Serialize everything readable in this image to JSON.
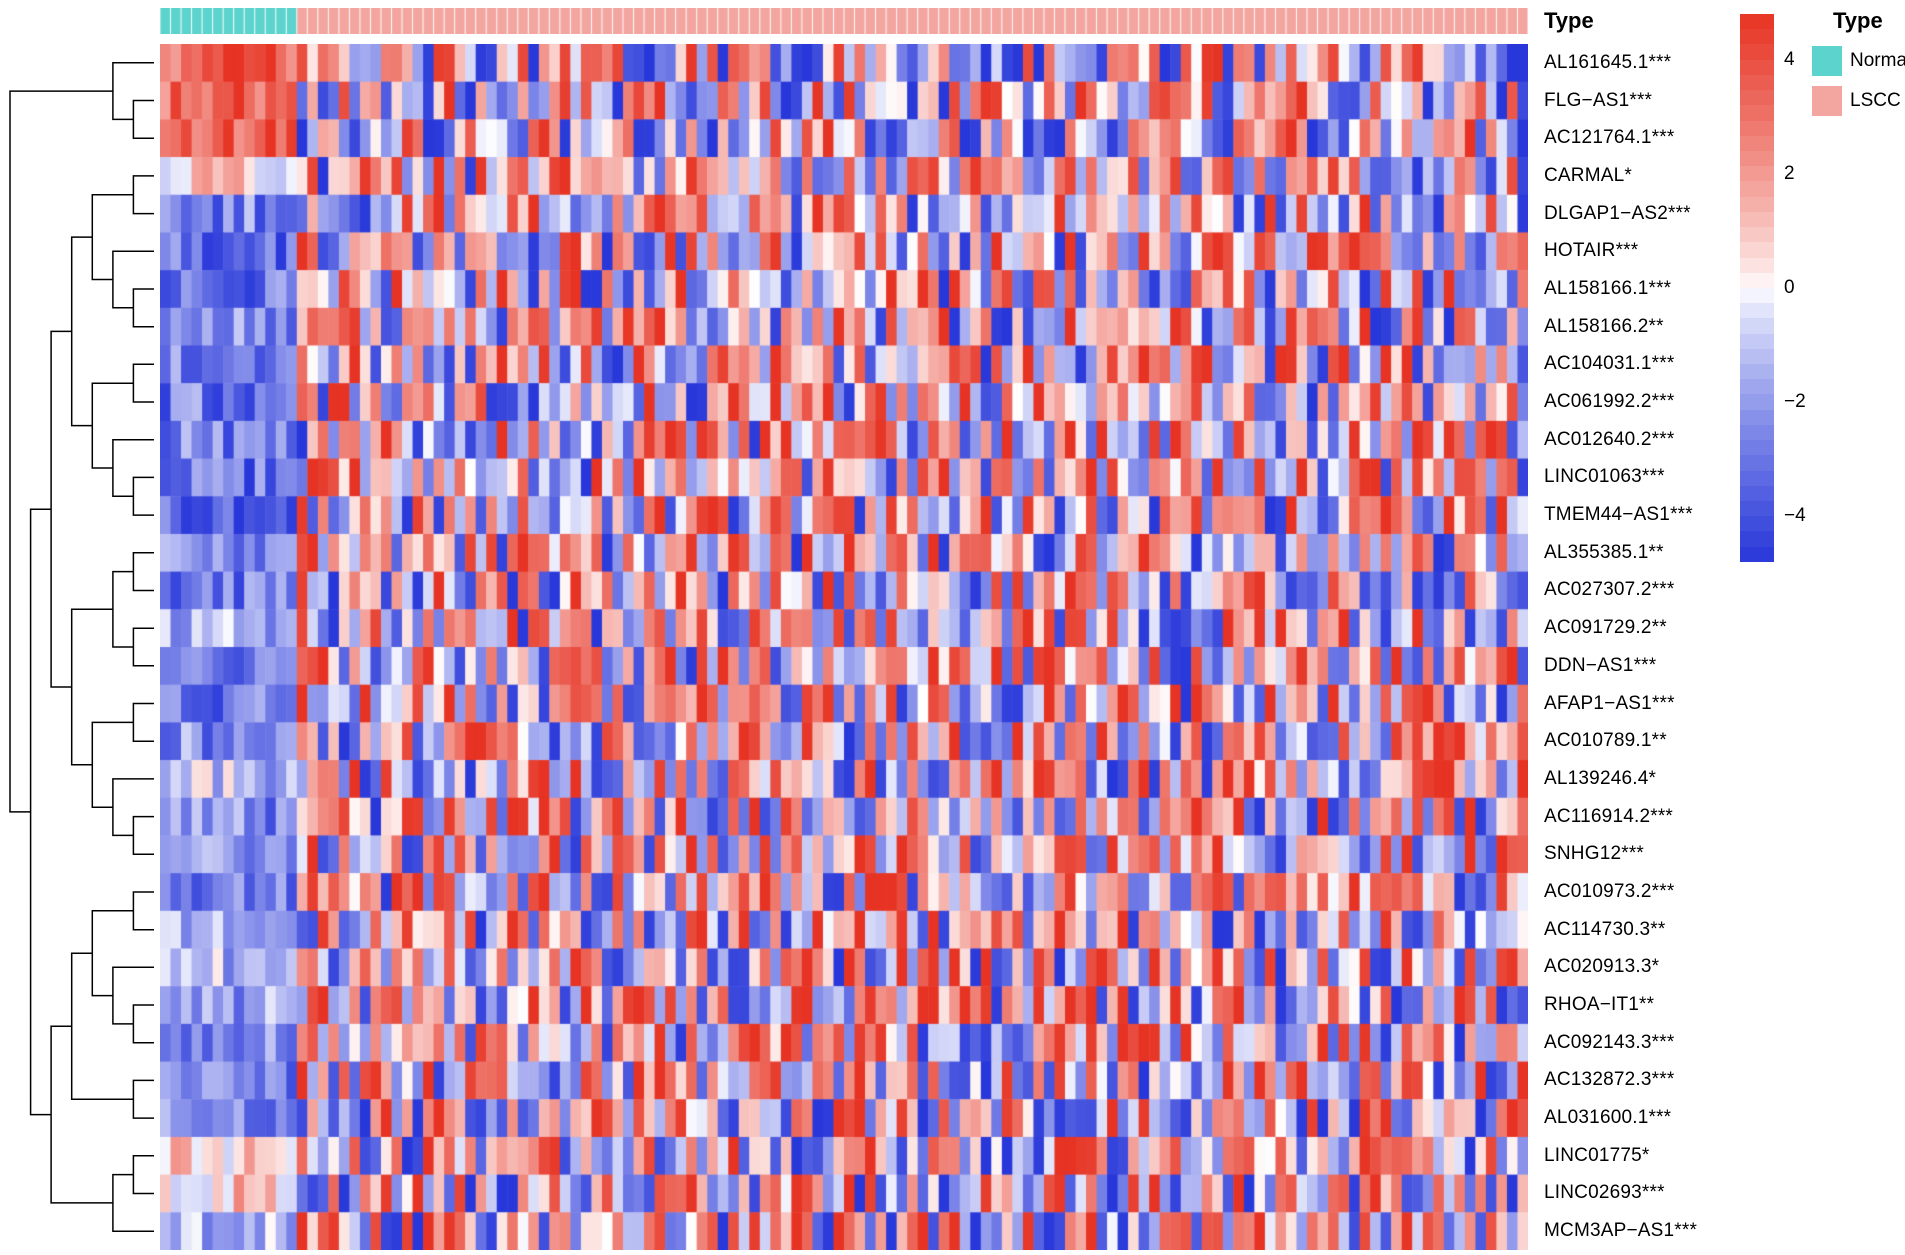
{
  "figure": {
    "background": "#FFFFFF"
  },
  "annotation": {
    "label": "Type",
    "groups": [
      {
        "name": "Normal",
        "color": "#5CD3CC",
        "n_cols": 13
      },
      {
        "name": "LSCC",
        "color": "#F3A5A0",
        "n_cols": 117
      }
    ]
  },
  "legend": {
    "colorbar": {
      "ticks": [
        {
          "v": 4,
          "label": "4"
        },
        {
          "v": 2,
          "label": "2"
        },
        {
          "v": 0,
          "label": "0"
        },
        {
          "v": -2,
          "label": "−2"
        },
        {
          "v": -4,
          "label": "−4"
        }
      ],
      "max": 4.8,
      "min": -4.8
    },
    "type_legend": {
      "title": "Type",
      "items": [
        {
          "label": "Normal",
          "color": "#5CD3CC"
        },
        {
          "label": "LSCC",
          "color": "#F3A5A0"
        }
      ]
    }
  },
  "chart_data": {
    "type": "heatmap",
    "title": "",
    "n_cols": 130,
    "col_groups": {
      "Normal": 13,
      "LSCC": 117
    },
    "value_range": [
      -4.8,
      4.8
    ],
    "colors": {
      "high": "#E63323",
      "zero": "#FFFFFF",
      "low": "#2737D9"
    },
    "seed": 20,
    "rows": [
      {
        "label": "AL161645.1***",
        "normal_mean": 3.4,
        "lscc_mean": -0.4
      },
      {
        "label": "FLG−AS1***",
        "normal_mean": 3.2,
        "lscc_mean": -0.2
      },
      {
        "label": "AC121764.1***",
        "normal_mean": 3.6,
        "lscc_mean": -0.3
      },
      {
        "label": "CARMAL*",
        "normal_mean": 0.4,
        "lscc_mean": 0.0
      },
      {
        "label": "DLGAP1−AS2***",
        "normal_mean": -2.6,
        "lscc_mean": 0.2
      },
      {
        "label": "HOTAIR***",
        "normal_mean": -3.4,
        "lscc_mean": 0.3
      },
      {
        "label": "AL158166.1***",
        "normal_mean": -3.2,
        "lscc_mean": 0.3
      },
      {
        "label": "AL158166.2**",
        "normal_mean": -2.2,
        "lscc_mean": 0.2
      },
      {
        "label": "AC104031.1***",
        "normal_mean": -2.8,
        "lscc_mean": 0.3
      },
      {
        "label": "AC061992.2***",
        "normal_mean": -3.0,
        "lscc_mean": 0.3
      },
      {
        "label": "AC012640.2***",
        "normal_mean": -2.6,
        "lscc_mean": 0.2
      },
      {
        "label": "LINC01063***",
        "normal_mean": -3.2,
        "lscc_mean": 0.3
      },
      {
        "label": "TMEM44−AS1***",
        "normal_mean": -3.4,
        "lscc_mean": 0.3
      },
      {
        "label": "AL355385.1**",
        "normal_mean": -2.0,
        "lscc_mean": 0.2
      },
      {
        "label": "AC027307.2***",
        "normal_mean": -2.8,
        "lscc_mean": 0.3
      },
      {
        "label": "AC091729.2**",
        "normal_mean": -1.8,
        "lscc_mean": 0.2
      },
      {
        "label": "DDN−AS1***",
        "normal_mean": -2.6,
        "lscc_mean": 0.3
      },
      {
        "label": "AFAP1−AS1***",
        "normal_mean": -3.2,
        "lscc_mean": 0.4
      },
      {
        "label": "AC010789.1**",
        "normal_mean": -2.4,
        "lscc_mean": 0.2
      },
      {
        "label": "AL139246.4*",
        "normal_mean": -1.2,
        "lscc_mean": 0.1
      },
      {
        "label": "AC116914.2***",
        "normal_mean": -2.6,
        "lscc_mean": 0.3
      },
      {
        "label": "SNHG12***",
        "normal_mean": -2.4,
        "lscc_mean": 0.3
      },
      {
        "label": "AC010973.2***",
        "normal_mean": -2.8,
        "lscc_mean": 0.3
      },
      {
        "label": "AC114730.3**",
        "normal_mean": -2.0,
        "lscc_mean": 0.2
      },
      {
        "label": "AC020913.3*",
        "normal_mean": -1.4,
        "lscc_mean": 0.1
      },
      {
        "label": "RHOA−IT1**",
        "normal_mean": -1.8,
        "lscc_mean": 0.2
      },
      {
        "label": "AC092143.3***",
        "normal_mean": -2.6,
        "lscc_mean": 0.3
      },
      {
        "label": "AC132872.3***",
        "normal_mean": -2.8,
        "lscc_mean": 0.3
      },
      {
        "label": "AL031600.1***",
        "normal_mean": -2.6,
        "lscc_mean": 0.3
      },
      {
        "label": "LINC01775*",
        "normal_mean": 0.8,
        "lscc_mean": 0.0
      },
      {
        "label": "LINC02693***",
        "normal_mean": 0.9,
        "lscc_mean": 0.1
      },
      {
        "label": "MCM3AP−AS1***",
        "normal_mean": -1.2,
        "lscc_mean": 0.1
      }
    ],
    "dendrogram": [
      [
        0,
        [
          1,
          2
        ]
      ],
      [
        [
          [
            [
              [
                3,
                4
              ],
              [
                5,
                [
                  6,
                  7
                ]
              ]
            ],
            [
              [
                8,
                9
              ],
              [
                10,
                [
                  11,
                  12
                ]
              ]
            ]
          ],
          [
            [
              [
                13,
                14
              ],
              [
                15,
                16
              ]
            ],
            [
              [
                17,
                18
              ],
              [
                19,
                [
                  20,
                  21
                ]
              ]
            ]
          ]
        ],
        [
          [
            [
              [
                22,
                23
              ],
              [
                24,
                [
                  25,
                  26
                ]
              ]
            ],
            [
              27,
              28
            ]
          ],
          [
            [
              29,
              30
            ],
            31
          ]
        ]
      ]
    ]
  }
}
